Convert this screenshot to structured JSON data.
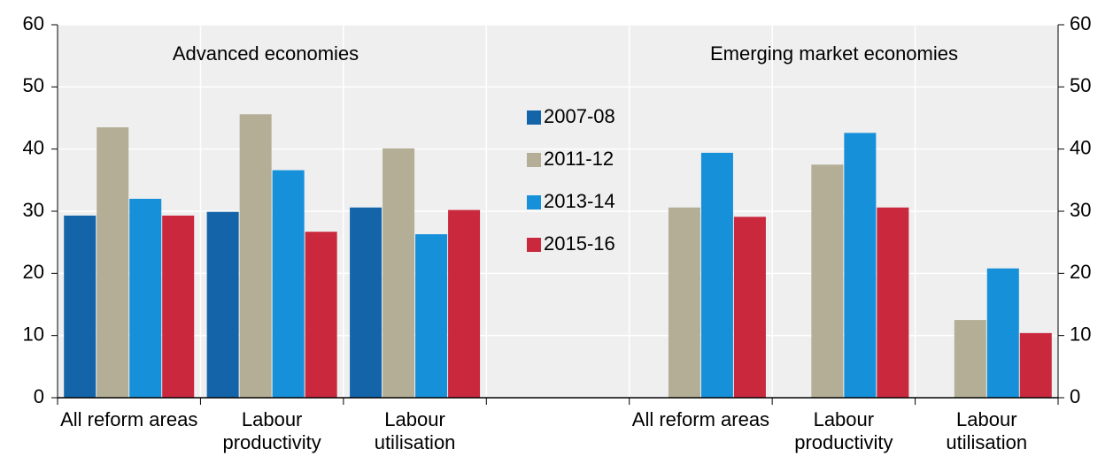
{
  "chart_data": {
    "type": "bar",
    "annotations": [
      "Advanced economies",
      "Emerging market economies"
    ],
    "categories": [
      "All reform areas",
      "Labour productivity",
      "Labour utilisation",
      null,
      "All reform areas",
      "Labour productivity",
      "Labour utilisation"
    ],
    "series": [
      {
        "name": "2007-08",
        "color": "#1464aa",
        "values": [
          29.3,
          29.9,
          30.6,
          null,
          null,
          null,
          null
        ]
      },
      {
        "name": "2011-12",
        "color": "#b3ae95",
        "values": [
          43.5,
          45.6,
          40.1,
          null,
          30.6,
          37.5,
          12.5
        ]
      },
      {
        "name": "2013-14",
        "color": "#1690d9",
        "values": [
          32,
          36.6,
          26.3,
          null,
          39.4,
          42.6,
          20.8
        ]
      },
      {
        "name": "2015-16",
        "color": "#c9283d",
        "values": [
          29.3,
          26.7,
          30.2,
          null,
          29.1,
          30.6,
          10.4
        ]
      }
    ],
    "ylim": [
      0,
      60
    ],
    "yticks": [
      0,
      10,
      20,
      30,
      40,
      50,
      60
    ],
    "y2lim": [
      0,
      60
    ],
    "y2ticks": [
      0,
      10,
      20,
      30,
      40,
      50,
      60
    ],
    "grid": true
  }
}
